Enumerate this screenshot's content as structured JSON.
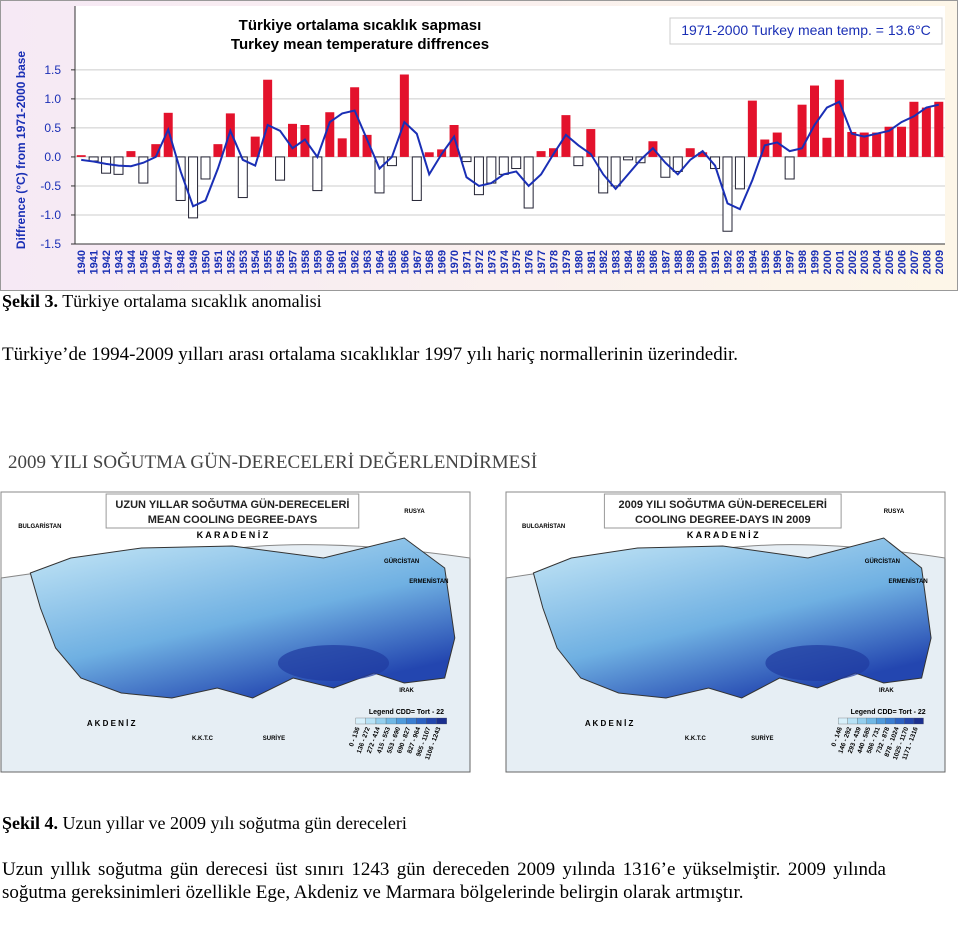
{
  "chart_data": {
    "type": "bar",
    "title": "Türkiye ortalama sıcaklık sapması",
    "subtitle": "Turkey mean temperature diffrences",
    "annotation": "1971-2000 Turkey mean temp. = 13.6°C",
    "y_label": "Diffrence (°C) from 1971-2000 base",
    "categories": [
      "1940",
      "1941",
      "1942",
      "1943",
      "1944",
      "1945",
      "1946",
      "1947",
      "1948",
      "1949",
      "1950",
      "1951",
      "1952",
      "1953",
      "1954",
      "1955",
      "1956",
      "1957",
      "1958",
      "1959",
      "1960",
      "1961",
      "1962",
      "1963",
      "1964",
      "1965",
      "1966",
      "1967",
      "1968",
      "1969",
      "1970",
      "1971",
      "1972",
      "1973",
      "1974",
      "1975",
      "1976",
      "1977",
      "1978",
      "1979",
      "1980",
      "1981",
      "1982",
      "1983",
      "1984",
      "1985",
      "1986",
      "1987",
      "1988",
      "1989",
      "1990",
      "1991",
      "1992",
      "1993",
      "1994",
      "1995",
      "1996",
      "1997",
      "1998",
      "1999",
      "2000",
      "2001",
      "2002",
      "2003",
      "2004",
      "2005",
      "2006",
      "2007",
      "2008",
      "2009"
    ],
    "series": [
      {
        "type": "bar",
        "color": "#e3122c",
        "negative_color": "#ffffff",
        "values": [
          0.03,
          -0.07,
          -0.28,
          -0.3,
          0.1,
          -0.45,
          0.22,
          0.76,
          -0.75,
          -1.05,
          -0.38,
          0.22,
          0.75,
          -0.7,
          0.35,
          1.33,
          -0.4,
          0.57,
          0.55,
          -0.58,
          0.77,
          0.32,
          1.2,
          0.38,
          -0.62,
          -0.15,
          1.42,
          -0.75,
          0.08,
          0.13,
          0.55,
          -0.08,
          -0.65,
          -0.45,
          -0.3,
          -0.2,
          -0.88,
          0.1,
          0.15,
          0.72,
          -0.15,
          0.48,
          -0.62,
          -0.5,
          -0.05,
          -0.1,
          0.27,
          -0.35,
          -0.25,
          0.15,
          0.08,
          -0.2,
          -1.28,
          -0.55,
          0.97,
          0.3,
          0.42,
          -0.38,
          0.9,
          1.23,
          0.33,
          1.33,
          0.43,
          0.42,
          0.42,
          0.52,
          0.52,
          0.95,
          0.85,
          0.95
        ]
      },
      {
        "type": "line",
        "color": "#1a2fb5",
        "values": [
          -0.05,
          -0.08,
          -0.12,
          -0.15,
          -0.16,
          -0.1,
          0.0,
          0.47,
          -0.25,
          -0.85,
          -0.75,
          -0.2,
          0.45,
          -0.05,
          -0.15,
          0.55,
          0.45,
          0.15,
          0.3,
          0.0,
          0.6,
          0.75,
          0.8,
          0.3,
          -0.2,
          0.0,
          0.6,
          0.4,
          -0.3,
          0.05,
          0.35,
          -0.35,
          -0.5,
          -0.45,
          -0.3,
          -0.25,
          -0.5,
          -0.3,
          0.05,
          0.38,
          0.2,
          0.05,
          -0.3,
          -0.55,
          -0.3,
          -0.05,
          0.15,
          -0.1,
          -0.3,
          -0.05,
          0.1,
          -0.15,
          -0.8,
          -0.9,
          -0.4,
          0.2,
          0.25,
          0.1,
          0.15,
          0.55,
          0.85,
          0.95,
          0.4,
          0.35,
          0.4,
          0.45,
          0.6,
          0.7,
          0.85,
          0.9
        ]
      }
    ],
    "ylim": [
      -1.5,
      2.6
    ],
    "yticks": [
      -1.5,
      {
        "value": -1,
        "label": "-1.0"
      },
      -0.5,
      {
        "value": 0,
        "label": "0.0"
      },
      0.5,
      {
        "value": 1,
        "label": "1.0"
      },
      1.5
    ],
    "grid": true
  },
  "caption1": {
    "label": "Şekil 3.",
    "text": " Türkiye ortalama sıcaklık anomalisi"
  },
  "paragraph1": "Türkiye’de 1994-2009 yılları arası ortalama sıcaklıklar 1997 yılı hariç normallerinin üzerindedir.",
  "heading": "2009 YILI SOĞUTMA GÜN-DERECELERİ DEĞERLENDİRMESİ",
  "maps": [
    {
      "title": "UZUN YILLAR SOĞUTMA GÜN-DERECELERİ",
      "subtitle": "MEAN COOLING DEGREE-DAYS",
      "sea_north": "K A R A   D E N İ Z",
      "sea_south": "A K D E N İ Z",
      "legend_title": "Legend CDD= Tort - 22",
      "legend": [
        "0 - 136",
        "136 - 272",
        "272 - 414",
        "415 - 553",
        "553 - 690",
        "690 - 827",
        "827 - 964",
        "965 - 1107",
        "1106 - 1243"
      ],
      "places": [
        "BULGARİSTAN",
        "RUSYA",
        "GÜRCİSTAN",
        "ERMENİSTAN",
        "IRAK",
        "SURİYE",
        "K.K.T.C"
      ]
    },
    {
      "title": "2009 YILI SOĞUTMA GÜN-DERECELERİ",
      "subtitle": "COOLING DEGREE-DAYS IN 2009",
      "sea_north": "K A R A   D E N İ Z",
      "sea_south": "A K D E N İ Z",
      "legend_title": "Legend CDD= Tort - 22",
      "legend": [
        "0 - 146",
        "146 - 292",
        "293 - 439",
        "440 - 585",
        "586 - 731",
        "732 - 878",
        "878 - 1024",
        "1025 - 1170",
        "1171 - 1316"
      ],
      "places": [
        "BULGARİSTAN",
        "RUSYA",
        "GÜRCİSTAN",
        "ERMENİSTAN",
        "IRAK",
        "SURİYE",
        "K.K.T.C"
      ]
    }
  ],
  "caption2": {
    "label": "Şekil 4.",
    "text": " Uzun yıllar ve 2009 yılı soğutma gün dereceleri"
  },
  "paragraph2": "Uzun yıllık soğutma gün derecesi üst sınırı 1243 gün dereceden 2009 yılında 1316’e yükselmiştir. 2009 yılında soğutma gereksinimleri özellikle Ege, Akdeniz ve Marmara bölgelerinde belirgin olarak artmıştır."
}
